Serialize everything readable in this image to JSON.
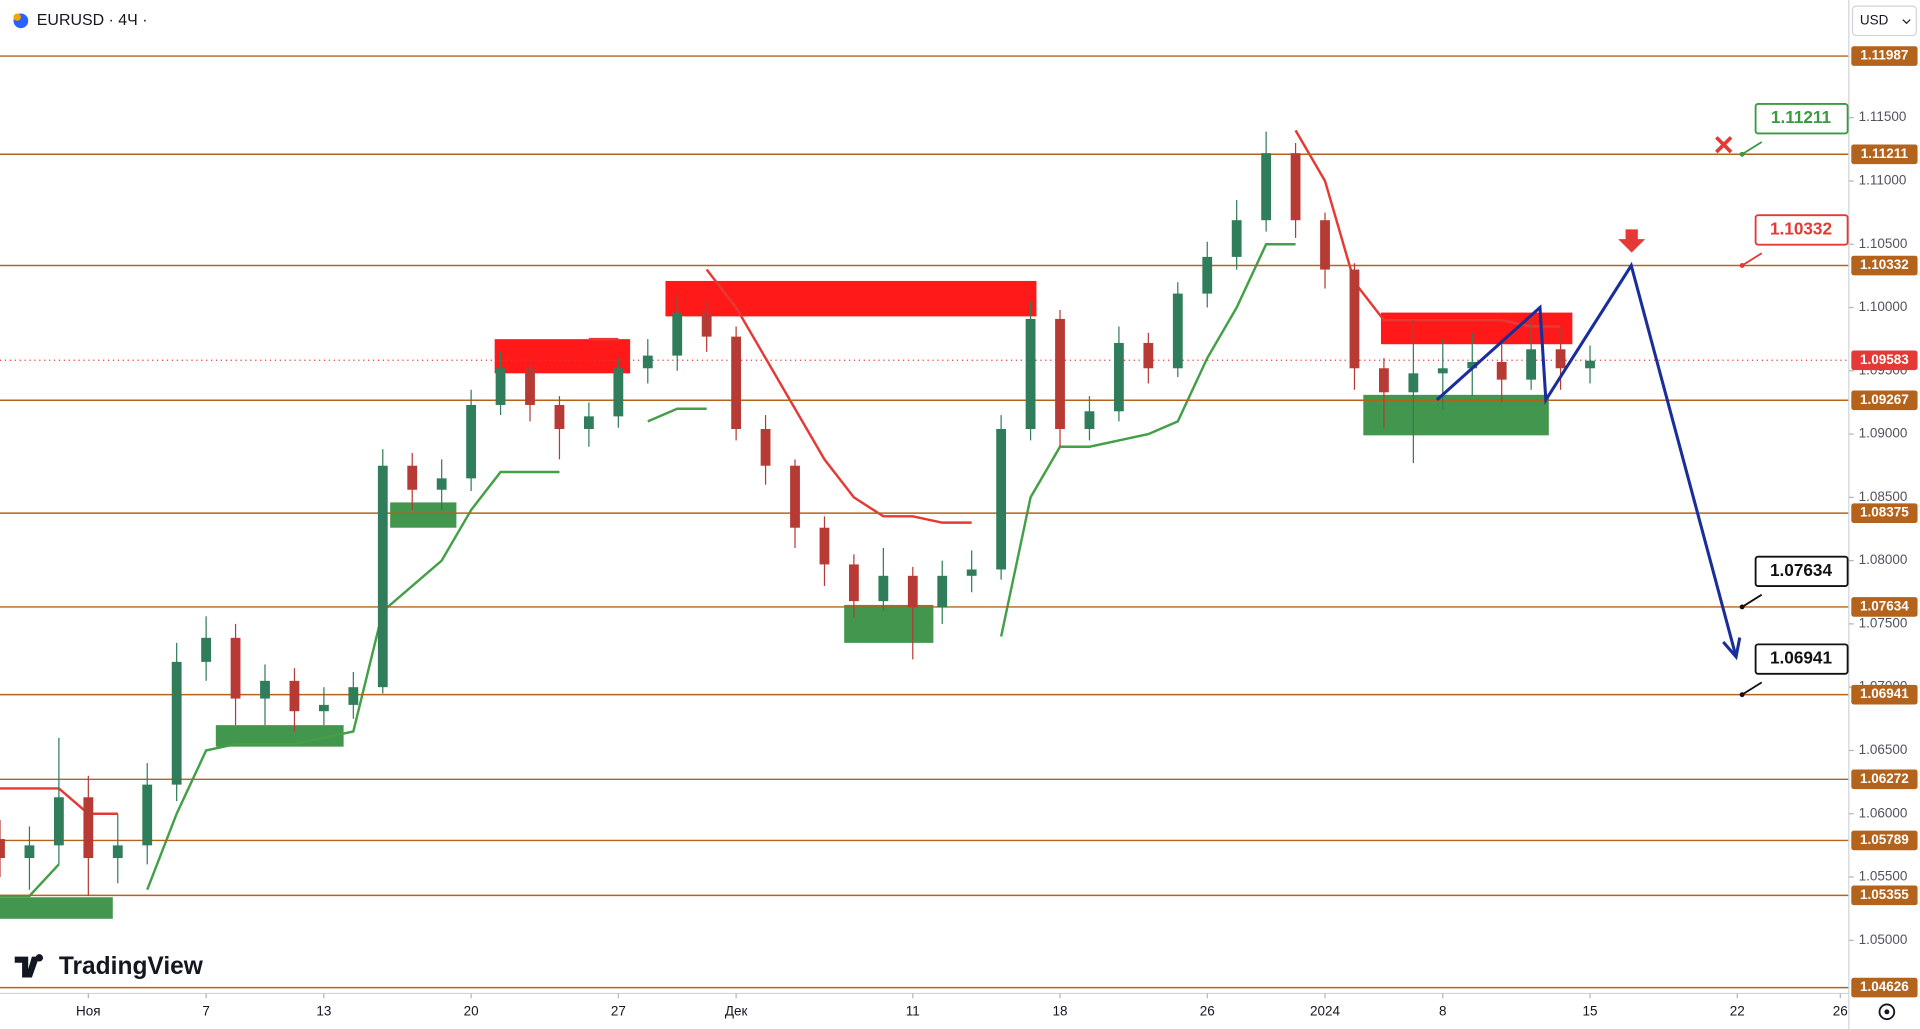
{
  "header": {
    "title": "EURUSD · 4Ч ·",
    "currency": "USD",
    "brand": "TradingView"
  },
  "chart_data": {
    "type": "candlestick",
    "xlim": [
      -3,
      59.79
    ],
    "ylim": [
      1.0458,
      1.1243
    ],
    "xticks": [
      {
        "value": 0,
        "label": "Ноя"
      },
      {
        "value": 4,
        "label": "7"
      },
      {
        "value": 8,
        "label": "13"
      },
      {
        "value": 13,
        "label": "20"
      },
      {
        "value": 18,
        "label": "27"
      },
      {
        "value": 22,
        "label": "Дек"
      },
      {
        "value": 28,
        "label": "11"
      },
      {
        "value": 33,
        "label": "18"
      },
      {
        "value": 38,
        "label": "26"
      },
      {
        "value": 42,
        "label": "2024"
      },
      {
        "value": 46,
        "label": "8"
      },
      {
        "value": 51,
        "label": "15"
      },
      {
        "value": 56,
        "label": "22"
      },
      {
        "value": 59.5,
        "label": "26"
      }
    ],
    "yticks": [
      {
        "value": 1.115,
        "label": "1.11500"
      },
      {
        "value": 1.11,
        "label": "1.11000"
      },
      {
        "value": 1.105,
        "label": "1.10500"
      },
      {
        "value": 1.1,
        "label": "1.10000"
      },
      {
        "value": 1.095,
        "label": "1.09500"
      },
      {
        "value": 1.09,
        "label": "1.09000"
      },
      {
        "value": 1.085,
        "label": "1.08500"
      },
      {
        "value": 1.08,
        "label": "1.08000"
      },
      {
        "value": 1.075,
        "label": "1.07500"
      },
      {
        "value": 1.07,
        "label": "1.07000"
      },
      {
        "value": 1.065,
        "label": "1.06500"
      },
      {
        "value": 1.06,
        "label": "1.06000"
      },
      {
        "value": 1.055,
        "label": "1.05500"
      },
      {
        "value": 1.05,
        "label": "1.05000"
      }
    ],
    "up_color": "#2f7d5a",
    "down_color": "#b83a35",
    "candles": {
      "x": [
        -3,
        -2,
        -1,
        0,
        1,
        2,
        3,
        4,
        5,
        6,
        7,
        8,
        9,
        10,
        11,
        12,
        13,
        14,
        15,
        16,
        17,
        18,
        19,
        20,
        21,
        22,
        23,
        24,
        25,
        26,
        27,
        28,
        29,
        30,
        31,
        32,
        33,
        34,
        35,
        36,
        37,
        38,
        39,
        40,
        41,
        42,
        43,
        44,
        45,
        46,
        47,
        48,
        49,
        50,
        51
      ],
      "open": [
        1.058,
        1.0565,
        1.0575,
        1.0613,
        1.0565,
        1.0575,
        1.0623,
        1.072,
        1.0739,
        1.0691,
        1.0705,
        1.0681,
        1.0686,
        1.07,
        1.0875,
        1.0856,
        1.0865,
        1.0923,
        1.0952,
        1.0923,
        1.0904,
        1.0914,
        1.0952,
        1.0962,
        1.0996,
        1.0977,
        1.0904,
        1.0875,
        1.0826,
        1.0797,
        1.0768,
        1.0788,
        1.0763,
        1.0788,
        1.0793,
        1.0904,
        1.0991,
        1.0904,
        1.0918,
        1.0972,
        1.0952,
        1.1011,
        1.104,
        1.1069,
        1.1122,
        1.1069,
        1.103,
        1.0952,
        1.0933,
        1.0948,
        1.0952,
        1.0957,
        1.0943,
        1.0967,
        1.0952
      ],
      "high": [
        1.0595,
        1.059,
        1.066,
        1.063,
        1.06,
        1.064,
        1.0735,
        1.0756,
        1.075,
        1.0718,
        1.0715,
        1.07,
        1.0712,
        1.0888,
        1.0885,
        1.088,
        1.0935,
        1.0965,
        1.096,
        1.093,
        1.0925,
        1.096,
        1.0975,
        1.101,
        1.1005,
        1.0985,
        1.0915,
        1.088,
        1.0835,
        1.0805,
        1.081,
        1.0795,
        1.08,
        1.0808,
        1.0915,
        1.1005,
        1.0998,
        1.093,
        1.0985,
        1.098,
        1.102,
        1.1052,
        1.1085,
        1.1139,
        1.113,
        1.1075,
        1.1035,
        1.096,
        1.099,
        1.0975,
        1.098,
        1.0975,
        1.099,
        1.0985,
        1.097
      ],
      "low": [
        1.055,
        1.054,
        1.056,
        1.0535,
        1.0545,
        1.056,
        1.061,
        1.0705,
        1.067,
        1.067,
        1.0665,
        1.067,
        1.0675,
        1.0695,
        1.084,
        1.084,
        1.0855,
        1.0915,
        1.091,
        1.088,
        1.089,
        1.0905,
        1.094,
        1.095,
        1.0965,
        1.0895,
        1.086,
        1.081,
        1.078,
        1.0755,
        1.076,
        1.0722,
        1.075,
        1.0775,
        1.0785,
        1.0895,
        1.089,
        1.0895,
        1.091,
        1.094,
        1.0945,
        1.1,
        1.103,
        1.106,
        1.1055,
        1.1015,
        1.0935,
        1.0905,
        1.0877,
        1.092,
        1.093,
        1.0925,
        1.0935,
        1.0935,
        1.094
      ],
      "close": [
        1.0565,
        1.0575,
        1.0613,
        1.0565,
        1.0575,
        1.0623,
        1.072,
        1.0739,
        1.0691,
        1.0705,
        1.0681,
        1.0686,
        1.07,
        1.0875,
        1.0856,
        1.0865,
        1.0923,
        1.0952,
        1.0923,
        1.0904,
        1.0914,
        1.0952,
        1.0962,
        1.0996,
        1.0977,
        1.0904,
        1.0875,
        1.0826,
        1.0797,
        1.0768,
        1.0788,
        1.0763,
        1.0788,
        1.0793,
        1.0904,
        1.0991,
        1.0904,
        1.0918,
        1.0972,
        1.0952,
        1.1011,
        1.104,
        1.1069,
        1.1122,
        1.1069,
        1.103,
        1.0952,
        1.0933,
        1.0948,
        1.0952,
        1.0957,
        1.0943,
        1.0967,
        1.0952,
        1.0958
      ]
    },
    "trend_lines": [
      {
        "color": "#43a047",
        "x": [
          -3,
          -2,
          -1,
          0,
          1,
          2,
          3,
          4,
          5,
          6,
          7,
          8,
          9,
          10,
          11,
          12,
          13,
          14,
          15,
          16,
          17,
          18,
          19,
          20,
          21,
          22,
          23,
          24,
          25,
          26,
          27,
          28,
          29,
          30,
          31,
          32,
          33,
          34,
          35,
          36,
          37,
          38,
          39,
          40,
          41
        ],
        "values": [
          1.0535,
          1.0535,
          1.056,
          null,
          null,
          1.054,
          1.06,
          1.065,
          1.0655,
          1.0655,
          1.0655,
          1.066,
          1.0665,
          1.076,
          1.078,
          1.08,
          1.084,
          1.087,
          1.087,
          1.087,
          null,
          null,
          1.091,
          1.092,
          1.092,
          null,
          null,
          null,
          null,
          null,
          null,
          null,
          null,
          null,
          1.074,
          1.085,
          1.089,
          1.089,
          1.0895,
          1.09,
          1.091,
          1.096,
          1.1,
          1.105,
          1.105
        ]
      },
      {
        "color": "#e53935",
        "x": [
          -3,
          -2,
          -1,
          0,
          1,
          2,
          3,
          4,
          5,
          6,
          7,
          8,
          9,
          10,
          11,
          12,
          13,
          14,
          15,
          16,
          17,
          18,
          19,
          20,
          21,
          22,
          23,
          24,
          25,
          26,
          27,
          28,
          29,
          30,
          31,
          32,
          33,
          34,
          35,
          36,
          37,
          38,
          39,
          40,
          41,
          42,
          43,
          44,
          45,
          46,
          47,
          48,
          49,
          50
        ],
        "values": [
          1.062,
          1.062,
          1.062,
          1.06,
          1.06,
          null,
          null,
          null,
          null,
          null,
          null,
          null,
          null,
          null,
          null,
          null,
          null,
          null,
          null,
          null,
          1.0975,
          1.0975,
          null,
          null,
          1.103,
          1.1,
          1.096,
          1.092,
          1.088,
          1.085,
          1.0835,
          1.0835,
          1.083,
          1.083,
          null,
          null,
          null,
          null,
          null,
          null,
          null,
          null,
          null,
          null,
          1.114,
          1.11,
          1.102,
          1.099,
          1.099,
          1.099,
          1.099,
          1.099,
          1.0985,
          1.0985
        ]
      }
    ],
    "zones": [
      {
        "color": "#2e8b3a",
        "x": [
          -3,
          0.83
        ],
        "y": [
          1.0517,
          1.0534
        ]
      },
      {
        "color": "#2e8b3a",
        "x": [
          4.33,
          8.67
        ],
        "y": [
          1.0653,
          1.067
        ]
      },
      {
        "color": "#2e8b3a",
        "x": [
          10.25,
          12.5
        ],
        "y": [
          1.0826,
          1.0846
        ]
      },
      {
        "color": "#2e8b3a",
        "x": [
          25.67,
          28.7
        ],
        "y": [
          1.0735,
          1.0765
        ]
      },
      {
        "color": "#2e8b3a",
        "x": [
          43.3,
          49.6
        ],
        "y": [
          1.0899,
          1.0931
        ]
      },
      {
        "color": "#ff0000",
        "x": [
          13.8,
          18.4
        ],
        "y": [
          1.0948,
          1.0975
        ]
      },
      {
        "color": "#ff0000",
        "x": [
          19.6,
          32.2
        ],
        "y": [
          1.0993,
          1.1021
        ]
      },
      {
        "color": "#ff0000",
        "x": [
          43.9,
          50.4
        ],
        "y": [
          1.0971,
          1.0996
        ]
      }
    ],
    "forecast": {
      "color": "#1a2e9a",
      "x": [
        45.8,
        49.3,
        49.5,
        52.4,
        55.96
      ],
      "values": [
        1.0927,
        1.1,
        1.0927,
        1.10332,
        1.0724
      ]
    },
    "level_color": "#b3631c",
    "levels": [
      1.11987,
      1.11211,
      1.10332,
      1.09267,
      1.08375,
      1.07634,
      1.06941,
      1.06272,
      1.05789,
      1.05355,
      1.04626
    ],
    "current_price": {
      "value": 1.09583,
      "color": "#e53935"
    },
    "callouts": [
      {
        "value": 1.11211,
        "color": "#3a9a3f"
      },
      {
        "value": 1.10332,
        "color": "#e53935"
      },
      {
        "value": 1.07634,
        "color": "#111111"
      },
      {
        "value": 1.06941,
        "color": "#111111"
      }
    ]
  }
}
